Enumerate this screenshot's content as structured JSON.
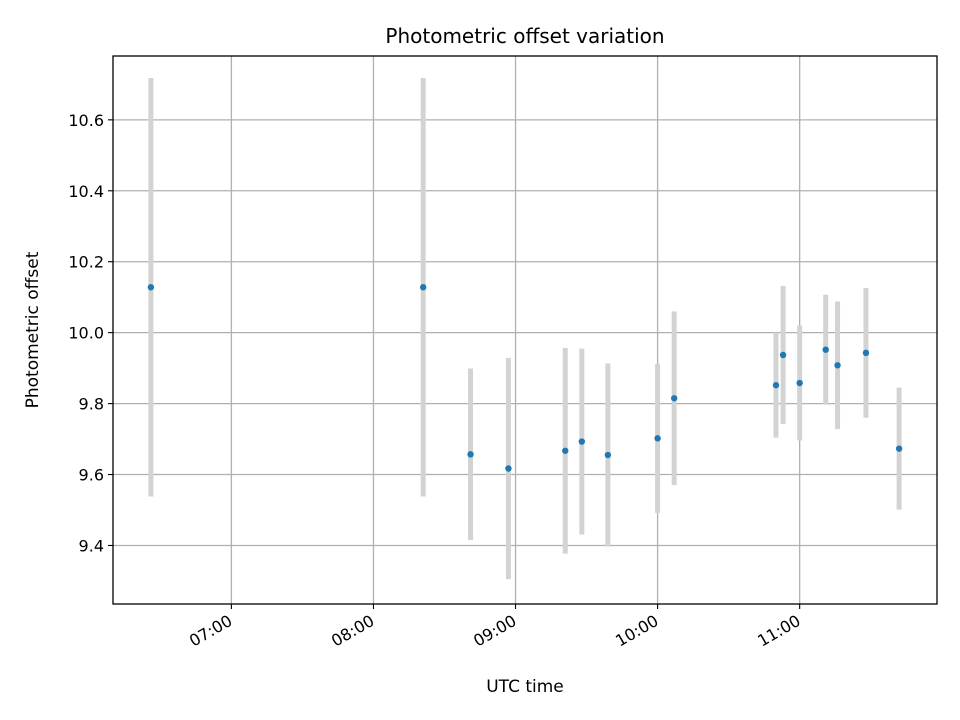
{
  "chart_data": {
    "type": "scatter",
    "title": "Photometric offset variation",
    "xlabel": "UTC time",
    "ylabel": "Photometric offset",
    "x_ticks": [
      "07:00",
      "08:00",
      "09:00",
      "10:00",
      "11:00"
    ],
    "y_ticks": [
      "9.4",
      "9.6",
      "9.8",
      "10.0",
      "10.2",
      "10.4",
      "10.6"
    ],
    "xlim": [
      "06:10",
      "11:58"
    ],
    "ylim": [
      9.235,
      10.78
    ],
    "grid": true,
    "colors": {
      "marker": "#1f77b4",
      "errorbar": "#d3d3d3",
      "grid": "#b0b0b0"
    },
    "points": [
      {
        "x": "06:26",
        "y": 10.128,
        "yerr": 0.59
      },
      {
        "x": "08:21",
        "y": 10.128,
        "yerr": 0.59
      },
      {
        "x": "08:41",
        "y": 9.657,
        "yerr": 0.242
      },
      {
        "x": "08:57",
        "y": 9.617,
        "yerr": 0.312
      },
      {
        "x": "09:21",
        "y": 9.667,
        "yerr": 0.29
      },
      {
        "x": "09:28",
        "y": 9.693,
        "yerr": 0.262
      },
      {
        "x": "09:39",
        "y": 9.655,
        "yerr": 0.258
      },
      {
        "x": "10:00",
        "y": 9.702,
        "yerr": 0.21
      },
      {
        "x": "10:07",
        "y": 9.815,
        "yerr": 0.245
      },
      {
        "x": "10:50",
        "y": 9.852,
        "yerr": 0.148
      },
      {
        "x": "10:53",
        "y": 9.937,
        "yerr": 0.195
      },
      {
        "x": "11:00",
        "y": 9.858,
        "yerr": 0.162
      },
      {
        "x": "11:11",
        "y": 9.952,
        "yerr": 0.155
      },
      {
        "x": "11:16",
        "y": 9.908,
        "yerr": 0.18
      },
      {
        "x": "11:28",
        "y": 9.943,
        "yerr": 0.183
      },
      {
        "x": "11:42",
        "y": 9.673,
        "yerr": 0.172
      }
    ]
  }
}
